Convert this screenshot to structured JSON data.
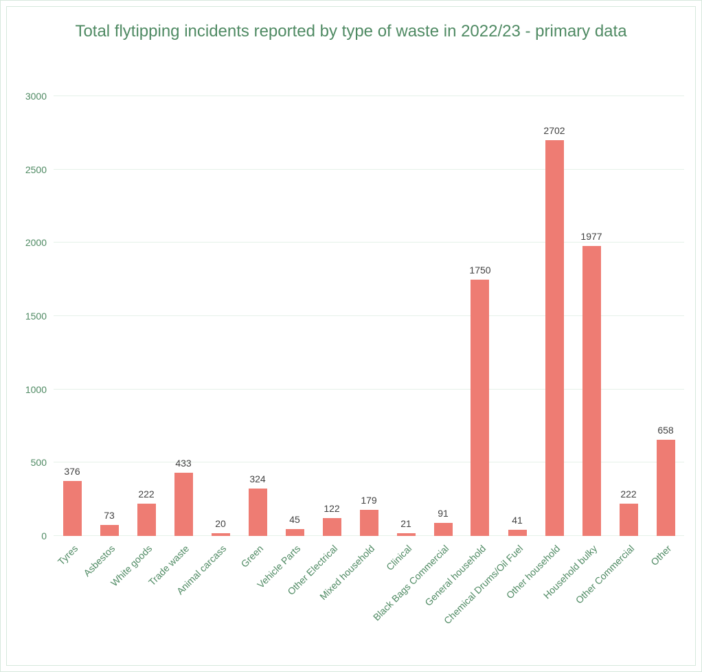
{
  "chart": {
    "type": "bar",
    "title": "Total flytipping incidents reported by type of waste in 2022/23 - primary data",
    "title_color": "#4f8a63",
    "title_fontsize": 24,
    "categories": [
      "Tyres",
      "Asbestos",
      "White goods",
      "Trade waste",
      "Animal carcass",
      "Green",
      "Vehicle Parts",
      "Other Electrical",
      "Mixed household",
      "Clinical",
      "Black Bags Commercial",
      "General household",
      "Chemical Drums/Oil Fuel",
      "Other household",
      "Household bulky",
      "Other Commercial",
      "Other"
    ],
    "values": [
      376,
      73,
      222,
      433,
      20,
      324,
      45,
      122,
      179,
      21,
      91,
      1750,
      41,
      2702,
      1977,
      222,
      658
    ],
    "bar_color": "#ee7c73",
    "value_label_color": "#404040",
    "axis_label_color": "#4f8a63",
    "axis_label_fontsize": 14,
    "value_label_fontsize": 14,
    "ylim": [
      0,
      3000
    ],
    "ytick_step": 500,
    "yticks": [
      0,
      500,
      1000,
      1500,
      2000,
      2500,
      3000
    ],
    "grid_color": "#e5f1e9",
    "border_color": "#d6e8dc",
    "background_color": "#ffffff",
    "bar_width": 0.5,
    "xlabel_rotation": -45
  }
}
